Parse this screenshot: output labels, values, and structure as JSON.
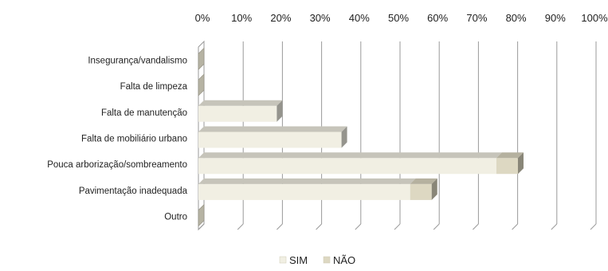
{
  "chart_data": {
    "type": "bar",
    "orientation": "horizontal",
    "stacked": true,
    "style": "3d",
    "categories": [
      "Insegurança/vandalismo",
      "Falta de limpeza",
      "Falta de manutenção",
      "Falta de mobiliário urbano",
      "Pouca arborização/sombreamento",
      "Pavimentação inadequada",
      "Outro"
    ],
    "series": [
      {
        "name": "SIM",
        "values": [
          0,
          0,
          20,
          36.5,
          76,
          54,
          0
        ],
        "color": "#f1efe3"
      },
      {
        "name": "NÃO",
        "values": [
          0,
          0,
          0,
          0,
          5.5,
          5.5,
          0
        ],
        "color": "#ddd8c2"
      }
    ],
    "xlim": [
      0,
      100
    ],
    "x_ticks": [
      "0%",
      "10%",
      "20%",
      "30%",
      "40%",
      "50%",
      "60%",
      "70%",
      "80%",
      "90%",
      "100%"
    ],
    "x_axis_position": "top",
    "grid": true,
    "legend_position": "bottom",
    "title": "",
    "xlabel": "",
    "ylabel": ""
  }
}
